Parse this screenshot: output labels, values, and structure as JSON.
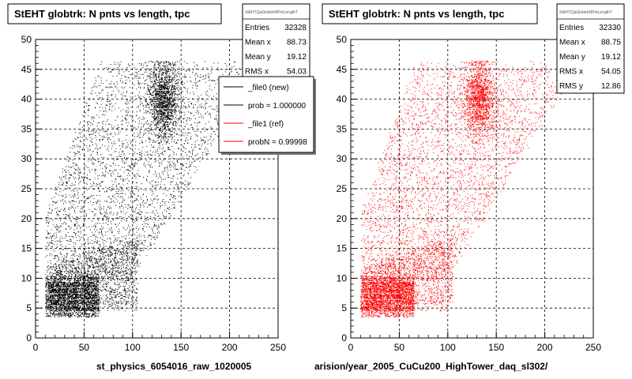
{
  "panels": [
    {
      "title": "StEHT globtrk: N pnts vs length, tpc",
      "xlabel": "st_physics_6054016_raw_1020005",
      "color": "#000000",
      "stats": {
        "header": "StEHTQaGlobtrkNPntLengthT",
        "rows": [
          {
            "label": "Entries",
            "value": "32328"
          },
          {
            "label": "Mean x",
            "value": "88.73"
          },
          {
            "label": "Mean y",
            "value": "19.12"
          },
          {
            "label": "RMS x",
            "value": "54.03"
          }
        ]
      },
      "legend": [
        {
          "label": "_file0 (new)",
          "color": "#000000"
        },
        {
          "label": "prob = 1.000000",
          "color": "#000000"
        },
        {
          "label": "_file1 (ref)",
          "color": "#ff0000"
        },
        {
          "label": "probN = 0.99998",
          "color": "#ff0000"
        }
      ]
    },
    {
      "title": "StEHT globtrk: N pnts vs length, tpc",
      "xlabel": "arision/year_2005_CuCu200_HighTower_daq_sl302/",
      "color": "#ff0000",
      "stats": {
        "header": "StEHTQaGlobtrkNPntLengthT",
        "rows": [
          {
            "label": "Entries",
            "value": "32330"
          },
          {
            "label": "Mean x",
            "value": "88.75"
          },
          {
            "label": "Mean y",
            "value": "19.12"
          },
          {
            "label": "RMS x",
            "value": "54.05"
          },
          {
            "label": "RMS y",
            "value": "12.86"
          }
        ]
      }
    }
  ],
  "chart_data": [
    {
      "type": "scatter",
      "title": "StEHT globtrk: N pnts vs length, tpc",
      "xlabel": "st_physics_6054016_raw_1020005",
      "ylabel": "",
      "xlim": [
        0,
        250
      ],
      "ylim": [
        0,
        50
      ],
      "x_ticks": [
        0,
        50,
        100,
        150,
        200,
        250
      ],
      "y_ticks": [
        0,
        5,
        10,
        15,
        20,
        25,
        30,
        35,
        40,
        45,
        50
      ],
      "grid": true,
      "series": [
        {
          "color": "#000000",
          "entries": 32328
        }
      ]
    },
    {
      "type": "scatter",
      "title": "StEHT globtrk: N pnts vs length, tpc",
      "xlabel": "arision/year_2005_CuCu200_HighTower_daq_sl302/",
      "ylabel": "",
      "xlim": [
        0,
        250
      ],
      "ylim": [
        0,
        50
      ],
      "x_ticks": [
        0,
        50,
        100,
        150,
        200,
        250
      ],
      "y_ticks": [
        0,
        5,
        10,
        15,
        20,
        25,
        30,
        35,
        40,
        45,
        50
      ],
      "grid": true,
      "series": [
        {
          "color": "#ff0000",
          "entries": 32330
        }
      ]
    }
  ]
}
